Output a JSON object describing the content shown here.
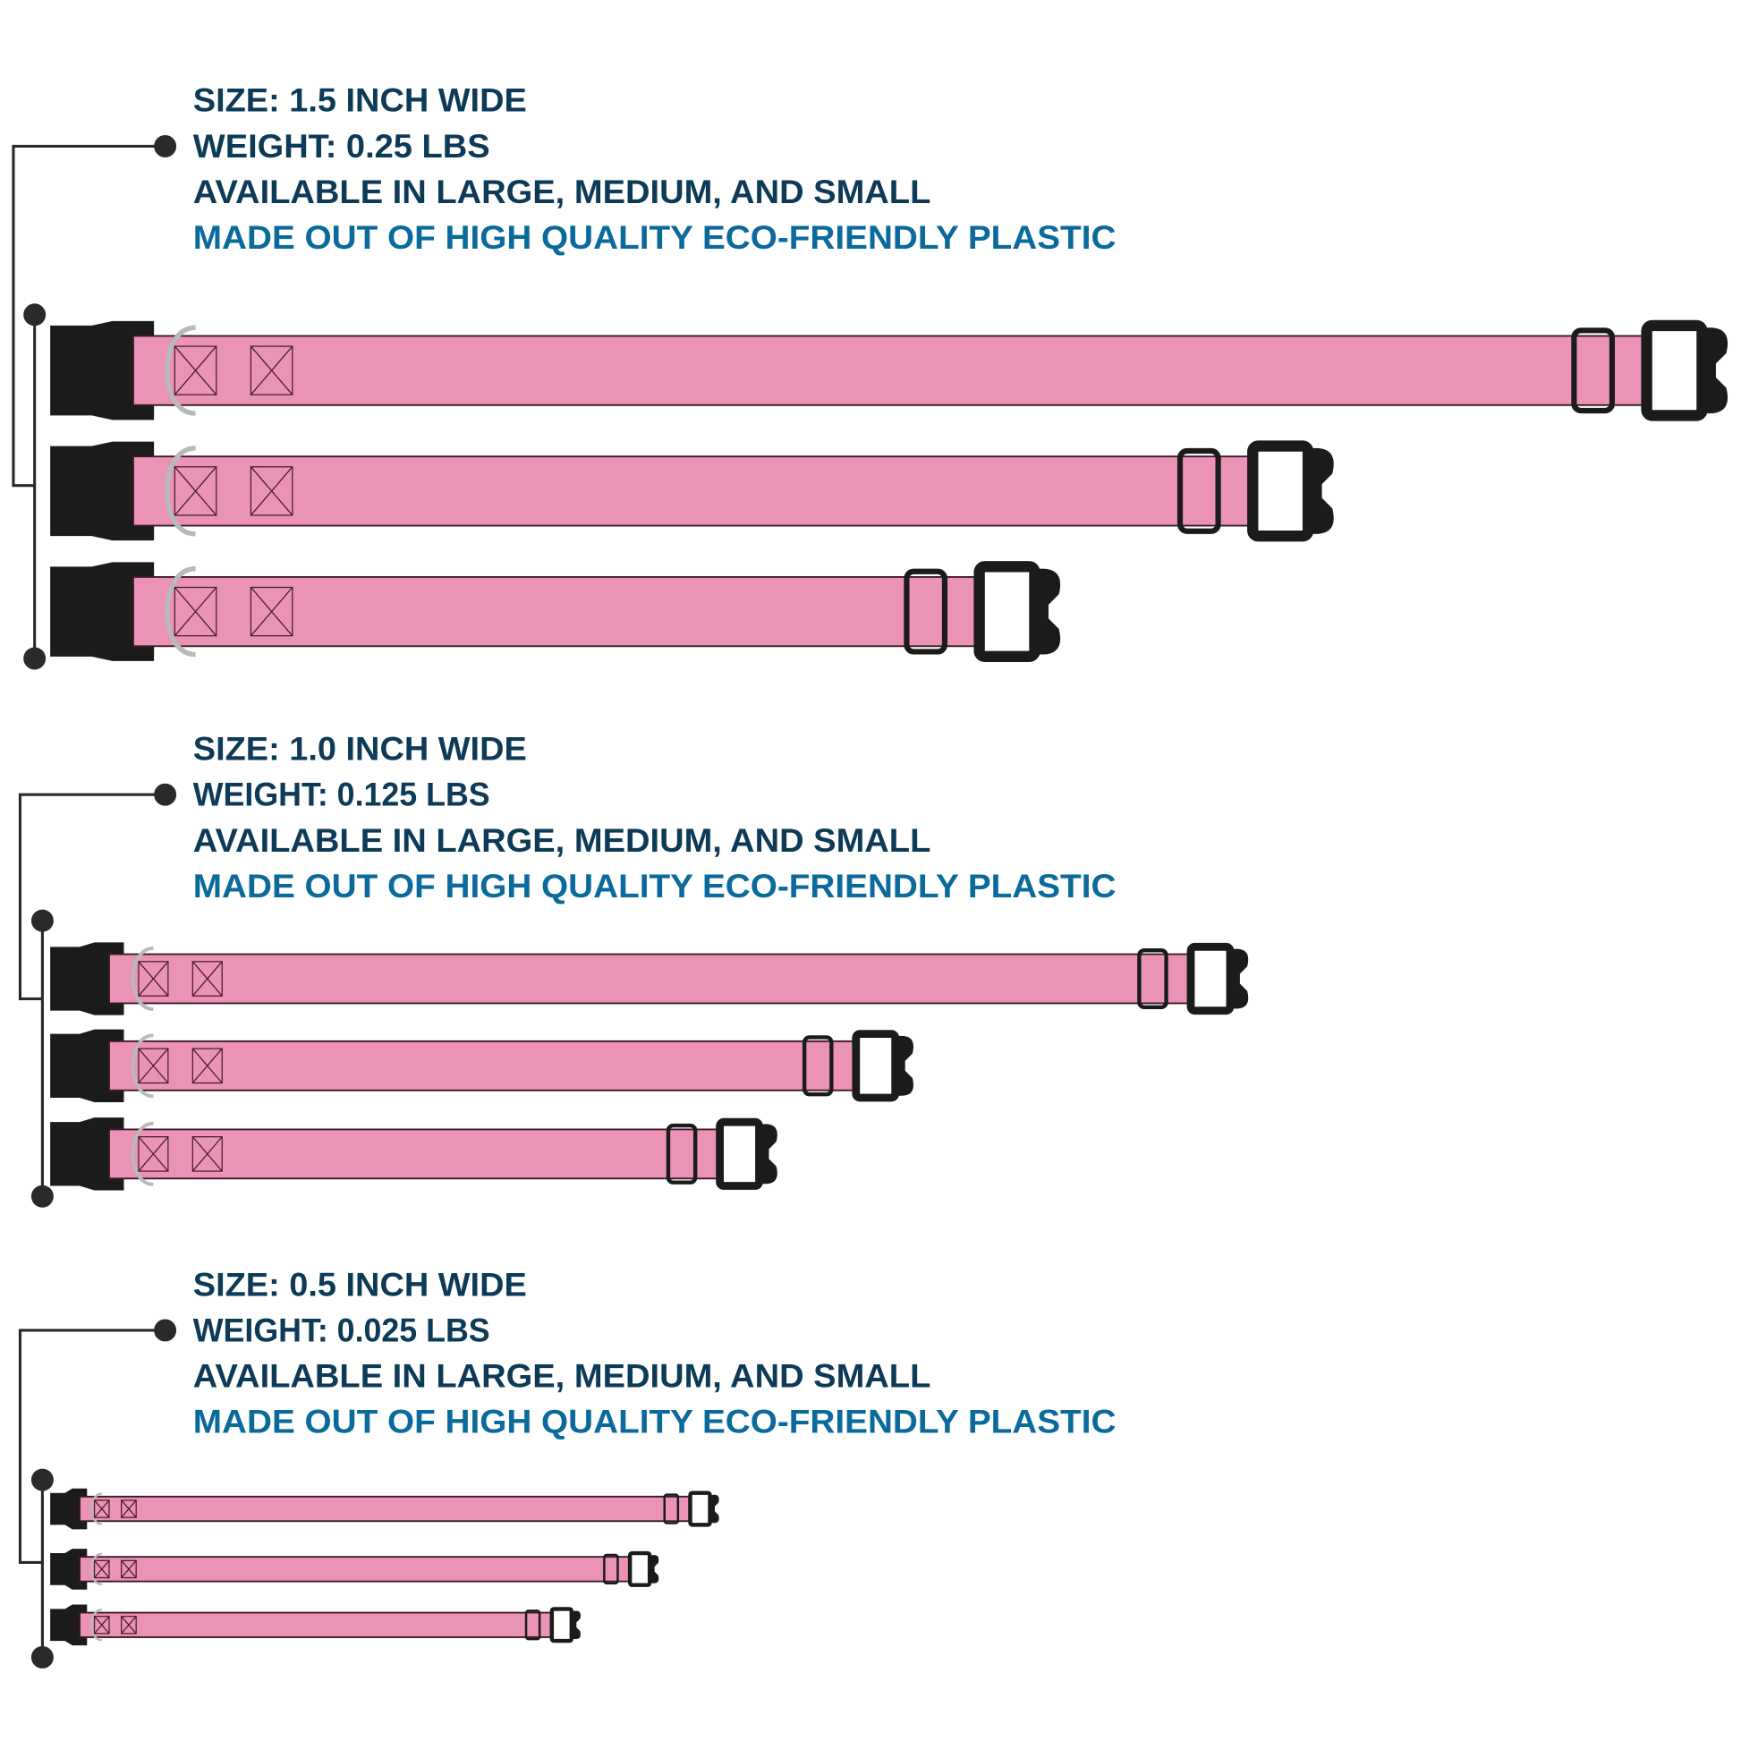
{
  "colors": {
    "heading": "#0d3a57",
    "highlight": "#0b6a9c",
    "strap_pink": "#ea93b6",
    "buckle": "#1b1b1b",
    "bracket": "#2a2a2a",
    "ring": "#b9b9b9"
  },
  "groups": [
    {
      "size": "SIZE: 1.5 INCH WIDE",
      "weight": "WEIGHT: 0.25 LBS",
      "availability": "AVAILABLE IN LARGE, MEDIUM, AND SMALL",
      "material": "MADE OUT OF HIGH QUALITY ECO-FRIENDLY PLASTIC",
      "collars": [
        "large",
        "medium",
        "small"
      ]
    },
    {
      "size": "SIZE: 1.0 INCH WIDE",
      "weight": "WEIGHT: 0.125 LBS",
      "availability": "AVAILABLE IN LARGE, MEDIUM, AND SMALL",
      "material": "MADE OUT OF HIGH QUALITY ECO-FRIENDLY PLASTIC",
      "collars": [
        "large",
        "medium",
        "small"
      ]
    },
    {
      "size": "SIZE: 0.5 INCH WIDE",
      "weight": "WEIGHT: 0.025 LBS",
      "availability": "AVAILABLE IN LARGE, MEDIUM, AND SMALL",
      "material": "MADE OUT OF HIGH QUALITY ECO-FRIENDLY PLASTIC",
      "collars": [
        "large",
        "medium",
        "small"
      ]
    }
  ]
}
